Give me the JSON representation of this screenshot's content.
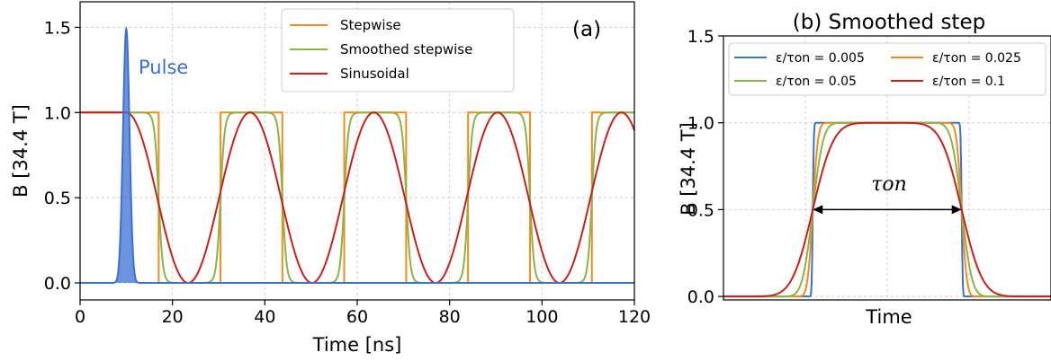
{
  "chart_data": [
    {
      "type": "line",
      "panel_label": "(a)",
      "xlabel": "Time [ns]",
      "ylabel": "B [34.4 T]",
      "xlim": [
        0,
        120
      ],
      "ylim": [
        -0.1,
        1.65
      ],
      "xticks": [
        "0",
        "20",
        "40",
        "60",
        "80",
        "100",
        "120"
      ],
      "yticks": [
        "0.0",
        "0.5",
        "1.0",
        "1.5"
      ],
      "grid": true,
      "legend_position": "top-center",
      "annotation": "Pulse",
      "pulse": {
        "name": "Pulse",
        "center_ns": 10,
        "peak": 1.49,
        "width_ns": 0.7,
        "color": "#3b6fd3"
      },
      "series": [
        {
          "name": "Stepwise",
          "color": "#f28c1c",
          "kind": "step",
          "period_ns": 26.8,
          "first_off_ns": 17,
          "on_ns": 13.4
        },
        {
          "name": "Smoothed stepwise",
          "color": "#8ab34a",
          "kind": "smooth-step",
          "period_ns": 26.8,
          "first_off_ns": 17,
          "on_ns": 13.4
        },
        {
          "name": "Sinusoidal",
          "color": "#c8201c",
          "kind": "sine",
          "period_ns": 26.8,
          "hold_until_ns": 10
        }
      ]
    },
    {
      "type": "line",
      "title": "(b) Smoothed step",
      "xlabel": "Time",
      "ylabel": "B [34.4 T]",
      "ylim": [
        -0.02,
        1.5
      ],
      "yticks": [
        "0.0",
        "0.5",
        "1.0",
        "1.5"
      ],
      "grid": true,
      "legend_position": "top",
      "annotation": "τon",
      "tau_on": 1.0,
      "x_range": [
        -1.1,
        1.1
      ],
      "series": [
        {
          "name": "ε/τon = 0.005",
          "eps_over_tau": 0.005,
          "color": "#3b6fd3"
        },
        {
          "name": "ε/τon = 0.025",
          "eps_over_tau": 0.025,
          "color": "#f28c1c"
        },
        {
          "name": "ε/τon = 0.05",
          "eps_over_tau": 0.05,
          "color": "#8ab34a"
        },
        {
          "name": "ε/τon = 0.1",
          "eps_over_tau": 0.1,
          "color": "#c8201c"
        }
      ]
    }
  ]
}
